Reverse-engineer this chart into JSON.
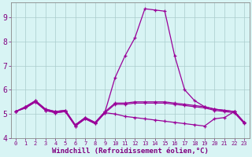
{
  "x": [
    0,
    1,
    2,
    3,
    4,
    5,
    6,
    7,
    8,
    9,
    10,
    11,
    12,
    13,
    14,
    15,
    16,
    17,
    18,
    19,
    20,
    21,
    22,
    23
  ],
  "line1_y": [
    5.1,
    5.3,
    5.55,
    5.2,
    5.1,
    5.15,
    4.55,
    4.85,
    4.65,
    5.1,
    5.45,
    5.45,
    5.5,
    5.5,
    5.5,
    5.5,
    5.45,
    5.4,
    5.35,
    5.3,
    5.2,
    5.15,
    5.1,
    4.65
  ],
  "line2_y": [
    5.1,
    5.25,
    5.5,
    5.15,
    5.05,
    5.1,
    4.5,
    4.8,
    4.6,
    5.05,
    5.4,
    5.4,
    5.45,
    5.45,
    5.45,
    5.45,
    5.4,
    5.35,
    5.3,
    5.25,
    5.15,
    5.1,
    5.05,
    4.6
  ],
  "line3_y": [
    5.1,
    5.3,
    5.55,
    5.2,
    5.1,
    5.15,
    4.55,
    4.85,
    4.65,
    5.1,
    6.5,
    7.4,
    8.15,
    9.35,
    9.3,
    9.25,
    7.4,
    6.0,
    5.55,
    5.3,
    5.2,
    5.15,
    5.1,
    4.65
  ],
  "line4_y": [
    5.1,
    5.25,
    5.5,
    5.15,
    5.05,
    5.1,
    4.5,
    4.8,
    4.6,
    5.05,
    5.0,
    4.9,
    4.85,
    4.8,
    4.75,
    4.7,
    4.65,
    4.6,
    4.55,
    4.5,
    4.8,
    4.85,
    5.1,
    4.65
  ],
  "line_color": "#990099",
  "bg_color": "#d8f4f4",
  "grid_color": "#aacccc",
  "axis_color": "#800080",
  "xlabel": "Windchill (Refroidissement éolien,°C)",
  "ylim": [
    4.0,
    9.6
  ],
  "xlim": [
    -0.5,
    23.5
  ],
  "yticks": [
    4,
    5,
    6,
    7,
    8,
    9
  ],
  "xticks": [
    0,
    1,
    2,
    3,
    4,
    5,
    6,
    7,
    8,
    9,
    10,
    11,
    12,
    13,
    14,
    15,
    16,
    17,
    18,
    19,
    20,
    21,
    22,
    23
  ],
  "ytick_fontsize": 7,
  "xtick_fontsize": 5,
  "xlabel_fontsize": 6.5,
  "linewidth": 0.9,
  "markersize": 3.5
}
